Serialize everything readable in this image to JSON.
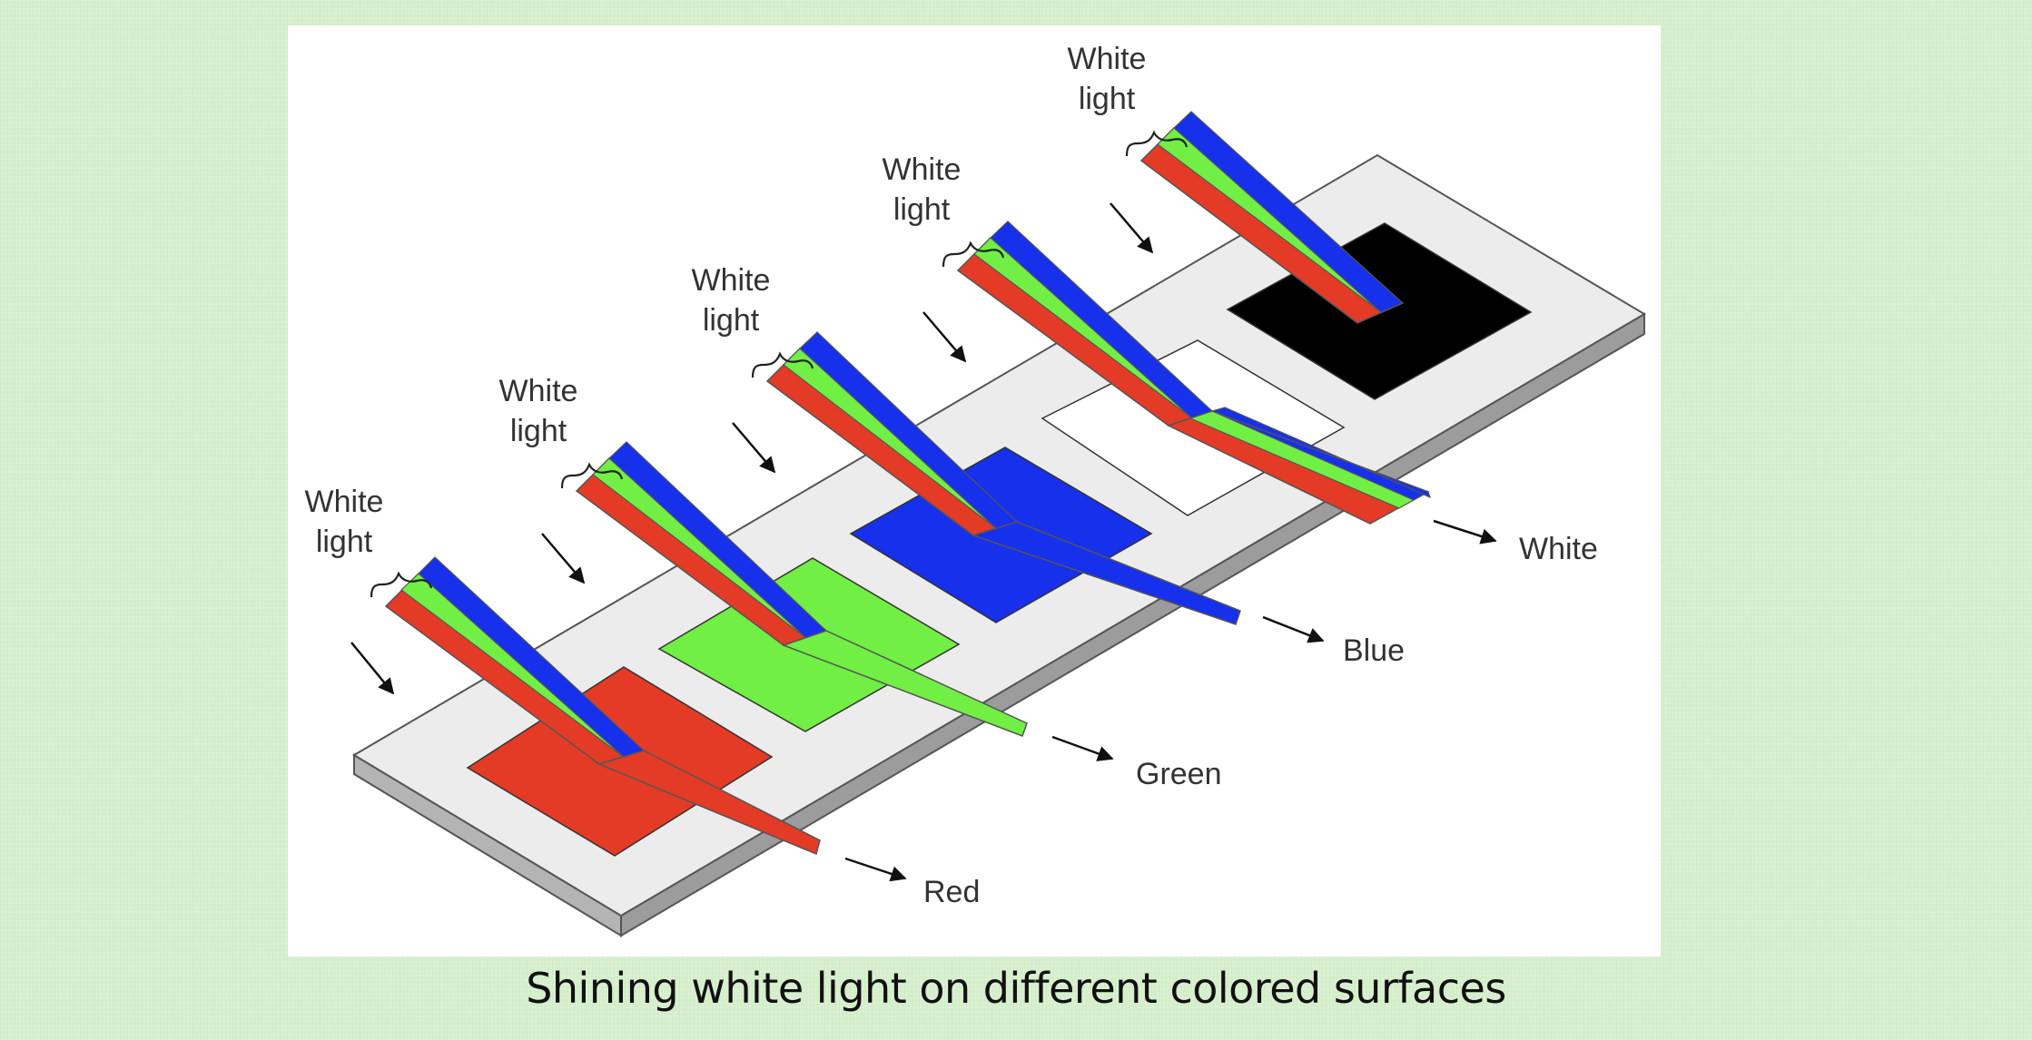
{
  "diagram": {
    "colors": {
      "red": "#e43b26",
      "green": "#71ef44",
      "blue": "#1630ec",
      "black": "#000000",
      "white": "#ffffff",
      "board_top": "#ececec",
      "board_side": "#b4b4b4"
    },
    "incident_labels": [
      {
        "line1": "White",
        "line2": "light"
      },
      {
        "line1": "White",
        "line2": "light"
      },
      {
        "line1": "White",
        "line2": "light"
      },
      {
        "line1": "White",
        "line2": "light"
      },
      {
        "line1": "White",
        "line2": "light"
      }
    ],
    "outputs": [
      {
        "label": "Red"
      },
      {
        "label": "Green"
      },
      {
        "label": "Blue"
      },
      {
        "label": "White"
      }
    ]
  },
  "caption": "Shining white light on different colored surfaces"
}
